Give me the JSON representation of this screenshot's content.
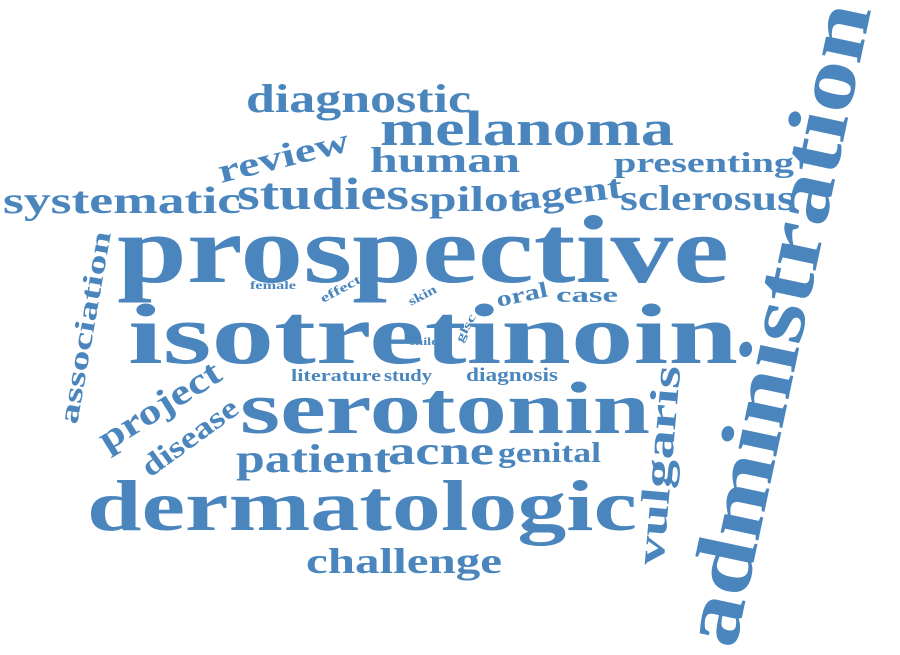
{
  "style": {
    "word_color": "#4a86bd",
    "background": "#ffffff"
  },
  "words": {
    "administration": "administration",
    "prospective": "prospective",
    "isotretinoin": "isotretinoin",
    "serotonin": "serotonin",
    "dermatologic": "dermatologic",
    "melanoma": "melanoma",
    "diagnostic": "diagnostic",
    "human": "human",
    "review": "review",
    "systematic": "systematic",
    "studies": "studies",
    "spilot": "spilot",
    "agent": "agent",
    "presenting": "presenting",
    "sclerosus": "sclerosus",
    "association": "association",
    "project": "project",
    "disease": "disease",
    "patient": "patient",
    "acne": "acne",
    "genital": "genital",
    "vulgaris": "vulgaris",
    "challenge": "challenge",
    "literature": "literature",
    "study": "study",
    "diagnosis": "diagnosis",
    "oral": "oral",
    "case": "case",
    "female": "female",
    "effect": "effect",
    "skin": "skin",
    "child": "child",
    "glsc": "glsc"
  }
}
